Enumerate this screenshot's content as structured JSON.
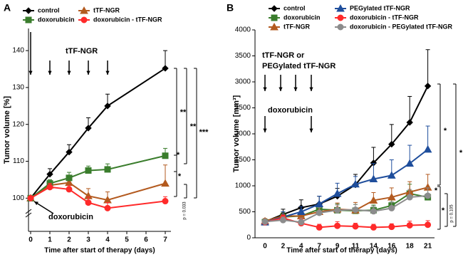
{
  "chart_data": [
    {
      "type": "line",
      "panel": "A",
      "x_label": "Time after start of therapy (days)",
      "y_label": "Tumor volume  [%]",
      "x": [
        0,
        1,
        2,
        3,
        4,
        7
      ],
      "xlim": [
        0,
        7
      ],
      "xticks": [
        0,
        1,
        2,
        3,
        4,
        5,
        6,
        7
      ],
      "ylim": [
        91,
        146
      ],
      "yticks": [
        100,
        110,
        120,
        130,
        140
      ],
      "series": [
        {
          "name": "control",
          "color": "#000000",
          "marker": "diamond",
          "values": [
            100,
            106.5,
            112.5,
            119,
            125,
            135.2
          ],
          "errors": [
            0,
            1.5,
            2,
            2.8,
            3.2,
            4.8
          ]
        },
        {
          "name": "tTF-NGR",
          "color": "#b35a1f",
          "marker": "triangle",
          "values": [
            100,
            103.5,
            104.2,
            100.6,
            99.5,
            104
          ],
          "errors": [
            0,
            1,
            1.2,
            2,
            2.2,
            5
          ]
        },
        {
          "name": "doxorubicin",
          "color": "#3a7d2c",
          "marker": "square",
          "values": [
            100,
            104,
            105.5,
            107.5,
            107.8,
            111.5
          ],
          "errors": [
            0,
            1,
            1.5,
            1.2,
            1.5,
            2
          ]
        },
        {
          "name": "doxorubicin - tTF-NGR",
          "color": "#ff2a2a",
          "marker": "circle",
          "values": [
            100,
            103,
            102.4,
            98.8,
            97.3,
            99.2
          ],
          "errors": [
            0,
            1,
            1,
            1.5,
            1.5,
            1.2
          ]
        }
      ],
      "annotations": [
        "tTF-NGR",
        "doxorubicin",
        "**",
        "**",
        "***",
        "*",
        "*",
        "p = 0.033"
      ]
    },
    {
      "type": "line",
      "panel": "B",
      "x_label": "Time after start of therapy (days)",
      "y_label": "Tumor volume  [mm³]",
      "categories": [
        "0",
        "2",
        "4",
        "7",
        "9",
        "11",
        "14",
        "16",
        "18",
        "21"
      ],
      "ylim": [
        0,
        4000
      ],
      "yticks": [
        0,
        500,
        1000,
        1500,
        2000,
        2500,
        3000,
        3500,
        4000
      ],
      "series": [
        {
          "name": "control",
          "color": "#000000",
          "marker": "diamond",
          "values": [
            310,
            450,
            580,
            650,
            800,
            1020,
            1440,
            1800,
            2220,
            2920
          ],
          "errors": [
            50,
            100,
            150,
            150,
            150,
            200,
            300,
            380,
            500,
            700
          ]
        },
        {
          "name": "doxorubicin",
          "color": "#3a7d2c",
          "marker": "square",
          "values": [
            300,
            400,
            420,
            550,
            530,
            520,
            530,
            620,
            850,
            780
          ],
          "errors": [
            50,
            80,
            100,
            100,
            120,
            120,
            100,
            150,
            180,
            200
          ]
        },
        {
          "name": "tTF-NGR",
          "color": "#b35a1f",
          "marker": "triangle",
          "values": [
            320,
            420,
            420,
            500,
            550,
            530,
            720,
            780,
            880,
            970
          ],
          "errors": [
            50,
            80,
            100,
            120,
            120,
            150,
            150,
            180,
            200,
            250
          ]
        },
        {
          "name": "PEGylated  tTF-NGR",
          "color": "#1f4e9c",
          "marker": "triangle",
          "values": [
            300,
            400,
            500,
            650,
            850,
            1030,
            1130,
            1200,
            1430,
            1700
          ],
          "errors": [
            50,
            100,
            100,
            150,
            200,
            150,
            300,
            300,
            350,
            450
          ]
        },
        {
          "name": "doxorubicin - tTF-NGR",
          "color": "#ff2a2a",
          "marker": "circle",
          "values": [
            300,
            380,
            280,
            200,
            230,
            220,
            200,
            210,
            240,
            250
          ],
          "errors": [
            40,
            60,
            80,
            60,
            80,
            60,
            60,
            60,
            80,
            80
          ]
        },
        {
          "name": "doxorubicin - PEGylated tTF-NGR",
          "color": "#8c8c8c",
          "marker": "circle",
          "values": [
            310,
            340,
            300,
            480,
            530,
            540,
            510,
            570,
            780,
            810
          ],
          "errors": [
            40,
            60,
            80,
            100,
            100,
            100,
            100,
            120,
            150,
            150
          ]
        }
      ],
      "annotations": [
        "tTF-NGR or",
        "PEGylated tTF-NGR",
        "doxorubicin",
        "*",
        "*",
        "*",
        "*",
        "p = 0.105"
      ]
    }
  ]
}
